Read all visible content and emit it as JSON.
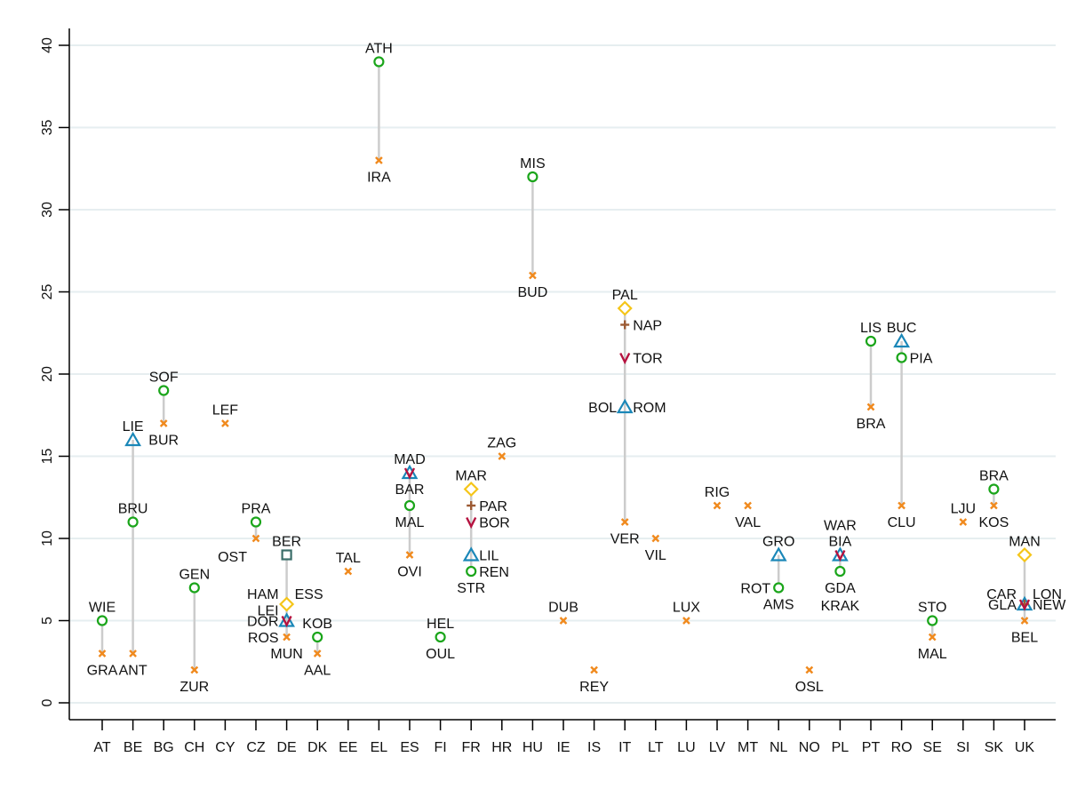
{
  "chart_data": {
    "type": "scatter",
    "title": "",
    "xlabel": "",
    "ylabel": "",
    "ylim": [
      0,
      40
    ],
    "yticks": [
      0,
      5,
      10,
      15,
      20,
      25,
      30,
      35,
      40
    ],
    "grid": true,
    "legend": "none",
    "categories": [
      "AT",
      "BE",
      "BG",
      "CH",
      "CY",
      "CZ",
      "DE",
      "DK",
      "EE",
      "EL",
      "ES",
      "FI",
      "FR",
      "HR",
      "HU",
      "IE",
      "IS",
      "IT",
      "LT",
      "LU",
      "LV",
      "MT",
      "NL",
      "NO",
      "PL",
      "PT",
      "RO",
      "SE",
      "SI",
      "SK",
      "UK"
    ],
    "marker_styles": {
      "circle": {
        "color": "#1aa51a"
      },
      "x": {
        "color": "#f08a1e"
      },
      "triangle": {
        "color": "#1a87b8"
      },
      "diamond": {
        "color": "#f5c518"
      },
      "plus": {
        "color": "#9c5a33"
      },
      "v": {
        "color": "#b5123f"
      },
      "square": {
        "color": "#3b6e6a"
      }
    },
    "range_line_color": "#cccccc",
    "points": [
      {
        "cat": "AT",
        "value": 5,
        "marker": "circle",
        "labels": [
          {
            "text": "WIE",
            "pos": "above"
          }
        ]
      },
      {
        "cat": "AT",
        "value": 3,
        "marker": "x",
        "labels": [
          {
            "text": "GRA",
            "pos": "below"
          }
        ]
      },
      {
        "cat": "BE",
        "value": 16,
        "marker": "triangle",
        "labels": [
          {
            "text": "LIE",
            "pos": "above"
          }
        ]
      },
      {
        "cat": "BE",
        "value": 11,
        "marker": "circle",
        "labels": [
          {
            "text": "BRU",
            "pos": "above"
          }
        ]
      },
      {
        "cat": "BE",
        "value": 3,
        "marker": "x",
        "labels": [
          {
            "text": "ANT",
            "pos": "below"
          }
        ]
      },
      {
        "cat": "BG",
        "value": 19,
        "marker": "circle",
        "labels": [
          {
            "text": "SOF",
            "pos": "above"
          }
        ]
      },
      {
        "cat": "BG",
        "value": 17,
        "marker": "x",
        "labels": [
          {
            "text": "BUR",
            "pos": "below"
          }
        ]
      },
      {
        "cat": "CH",
        "value": 7,
        "marker": "circle",
        "labels": [
          {
            "text": "GEN",
            "pos": "above"
          }
        ]
      },
      {
        "cat": "CH",
        "value": 2,
        "marker": "x",
        "labels": [
          {
            "text": "ZUR",
            "pos": "below"
          }
        ]
      },
      {
        "cat": "CY",
        "value": 17,
        "marker": "x",
        "labels": [
          {
            "text": "LEF",
            "pos": "above"
          }
        ]
      },
      {
        "cat": "CZ",
        "value": 11,
        "marker": "circle",
        "labels": [
          {
            "text": "PRA",
            "pos": "above"
          }
        ]
      },
      {
        "cat": "CZ",
        "value": 10,
        "marker": "x",
        "labels": [
          {
            "text": "OST",
            "pos": "below-left"
          }
        ]
      },
      {
        "cat": "DE",
        "value": 9,
        "marker": "square",
        "labels": [
          {
            "text": "BER",
            "pos": "above"
          }
        ]
      },
      {
        "cat": "DE",
        "value": 6,
        "marker": "diamond",
        "labels": [
          {
            "text": "HAM",
            "pos": "left-up"
          },
          {
            "text": "ESS",
            "pos": "right-up"
          }
        ]
      },
      {
        "cat": "DE",
        "value": 5,
        "marker": "triangle",
        "labels": [
          {
            "text": "LEI",
            "pos": "left-up"
          }
        ]
      },
      {
        "cat": "DE",
        "value": 5,
        "marker": "v",
        "labels": [
          {
            "text": "DOR",
            "pos": "left"
          }
        ]
      },
      {
        "cat": "DE",
        "value": 4,
        "marker": "x",
        "labels": [
          {
            "text": "ROS",
            "pos": "left"
          },
          {
            "text": "MUN",
            "pos": "below"
          }
        ]
      },
      {
        "cat": "DK",
        "value": 4,
        "marker": "circle",
        "labels": [
          {
            "text": "KOB",
            "pos": "above"
          }
        ]
      },
      {
        "cat": "DK",
        "value": 3,
        "marker": "x",
        "labels": [
          {
            "text": "AAL",
            "pos": "below"
          }
        ]
      },
      {
        "cat": "EE",
        "value": 8,
        "marker": "x",
        "labels": [
          {
            "text": "TAL",
            "pos": "above"
          }
        ]
      },
      {
        "cat": "EL",
        "value": 39,
        "marker": "circle",
        "labels": [
          {
            "text": "ATH",
            "pos": "above"
          }
        ]
      },
      {
        "cat": "EL",
        "value": 33,
        "marker": "x",
        "labels": [
          {
            "text": "IRA",
            "pos": "below"
          }
        ]
      },
      {
        "cat": "ES",
        "value": 14,
        "marker": "triangle",
        "labels": [
          {
            "text": "MAD",
            "pos": "above"
          }
        ]
      },
      {
        "cat": "ES",
        "value": 14,
        "marker": "v",
        "labels": [
          {
            "text": "BAR",
            "pos": "below"
          }
        ]
      },
      {
        "cat": "ES",
        "value": 12,
        "marker": "circle",
        "labels": [
          {
            "text": "MAL",
            "pos": "below"
          }
        ]
      },
      {
        "cat": "ES",
        "value": 9,
        "marker": "x",
        "labels": [
          {
            "text": "OVI",
            "pos": "below"
          }
        ]
      },
      {
        "cat": "FI",
        "value": 4,
        "marker": "circle",
        "labels": [
          {
            "text": "HEL",
            "pos": "above"
          },
          {
            "text": "OUL",
            "pos": "below"
          }
        ]
      },
      {
        "cat": "FR",
        "value": 13,
        "marker": "diamond",
        "labels": [
          {
            "text": "MAR",
            "pos": "above"
          }
        ]
      },
      {
        "cat": "FR",
        "value": 12,
        "marker": "plus",
        "labels": [
          {
            "text": "PAR",
            "pos": "right"
          }
        ]
      },
      {
        "cat": "FR",
        "value": 11,
        "marker": "v",
        "labels": [
          {
            "text": "BOR",
            "pos": "right"
          }
        ]
      },
      {
        "cat": "FR",
        "value": 9,
        "marker": "triangle",
        "labels": [
          {
            "text": "LIL",
            "pos": "right"
          }
        ]
      },
      {
        "cat": "FR",
        "value": 8,
        "marker": "circle",
        "labels": [
          {
            "text": "REN",
            "pos": "right"
          },
          {
            "text": "STR",
            "pos": "below"
          }
        ]
      },
      {
        "cat": "HR",
        "value": 15,
        "marker": "x",
        "labels": [
          {
            "text": "ZAG",
            "pos": "above"
          }
        ]
      },
      {
        "cat": "HU",
        "value": 32,
        "marker": "circle",
        "labels": [
          {
            "text": "MIS",
            "pos": "above"
          }
        ]
      },
      {
        "cat": "HU",
        "value": 26,
        "marker": "x",
        "labels": [
          {
            "text": "BUD",
            "pos": "below"
          }
        ]
      },
      {
        "cat": "IE",
        "value": 5,
        "marker": "x",
        "labels": [
          {
            "text": "DUB",
            "pos": "above"
          }
        ]
      },
      {
        "cat": "IS",
        "value": 2,
        "marker": "x",
        "labels": [
          {
            "text": "REY",
            "pos": "below"
          }
        ]
      },
      {
        "cat": "IT",
        "value": 24,
        "marker": "diamond",
        "labels": [
          {
            "text": "PAL",
            "pos": "above"
          }
        ]
      },
      {
        "cat": "IT",
        "value": 23,
        "marker": "plus",
        "labels": [
          {
            "text": "NAP",
            "pos": "right"
          }
        ]
      },
      {
        "cat": "IT",
        "value": 21,
        "marker": "v",
        "labels": [
          {
            "text": "TOR",
            "pos": "right"
          }
        ]
      },
      {
        "cat": "IT",
        "value": 18,
        "marker": "triangle",
        "labels": [
          {
            "text": "BOL",
            "pos": "left"
          },
          {
            "text": "ROM",
            "pos": "right"
          }
        ]
      },
      {
        "cat": "IT",
        "value": 11,
        "marker": "x",
        "labels": [
          {
            "text": "VER",
            "pos": "below"
          }
        ]
      },
      {
        "cat": "LT",
        "value": 10,
        "marker": "x",
        "labels": [
          {
            "text": "VIL",
            "pos": "below"
          }
        ]
      },
      {
        "cat": "LU",
        "value": 5,
        "marker": "x",
        "labels": [
          {
            "text": "LUX",
            "pos": "above"
          }
        ]
      },
      {
        "cat": "LV",
        "value": 12,
        "marker": "x",
        "labels": [
          {
            "text": "RIG",
            "pos": "above"
          }
        ]
      },
      {
        "cat": "MT",
        "value": 12,
        "marker": "x",
        "labels": [
          {
            "text": "VAL",
            "pos": "below"
          }
        ]
      },
      {
        "cat": "NL",
        "value": 9,
        "marker": "triangle",
        "labels": [
          {
            "text": "GRO",
            "pos": "above"
          }
        ]
      },
      {
        "cat": "NL",
        "value": 7,
        "marker": "circle",
        "labels": [
          {
            "text": "ROT",
            "pos": "left"
          },
          {
            "text": "AMS",
            "pos": "below"
          }
        ]
      },
      {
        "cat": "NO",
        "value": 2,
        "marker": "x",
        "labels": [
          {
            "text": "OSL",
            "pos": "below"
          }
        ]
      },
      {
        "cat": "PL",
        "value": 9,
        "marker": "triangle",
        "labels": [
          {
            "text": "WAR",
            "pos": "above2"
          }
        ]
      },
      {
        "cat": "PL",
        "value": 9,
        "marker": "v",
        "labels": [
          {
            "text": "BIA",
            "pos": "above"
          }
        ]
      },
      {
        "cat": "PL",
        "value": 8,
        "marker": "circle",
        "labels": [
          {
            "text": "GDA",
            "pos": "below"
          },
          {
            "text": "KRAK",
            "pos": "below2"
          }
        ]
      },
      {
        "cat": "PT",
        "value": 22,
        "marker": "circle",
        "labels": [
          {
            "text": "LIS",
            "pos": "above"
          }
        ]
      },
      {
        "cat": "PT",
        "value": 18,
        "marker": "x",
        "labels": [
          {
            "text": "BRA",
            "pos": "below"
          }
        ]
      },
      {
        "cat": "RO",
        "value": 22,
        "marker": "triangle",
        "labels": [
          {
            "text": "BUC",
            "pos": "above"
          }
        ]
      },
      {
        "cat": "RO",
        "value": 21,
        "marker": "circle",
        "labels": [
          {
            "text": "PIA",
            "pos": "right"
          }
        ]
      },
      {
        "cat": "RO",
        "value": 12,
        "marker": "x",
        "labels": [
          {
            "text": "CLU",
            "pos": "below"
          }
        ]
      },
      {
        "cat": "SE",
        "value": 5,
        "marker": "circle",
        "labels": [
          {
            "text": "STO",
            "pos": "above"
          }
        ]
      },
      {
        "cat": "SE",
        "value": 4,
        "marker": "x",
        "labels": [
          {
            "text": "MAL",
            "pos": "below"
          }
        ]
      },
      {
        "cat": "SI",
        "value": 11,
        "marker": "x",
        "labels": [
          {
            "text": "LJU",
            "pos": "above"
          }
        ]
      },
      {
        "cat": "SK",
        "value": 13,
        "marker": "circle",
        "labels": [
          {
            "text": "BRA",
            "pos": "above"
          }
        ]
      },
      {
        "cat": "SK",
        "value": 12,
        "marker": "x",
        "labels": [
          {
            "text": "KOS",
            "pos": "below"
          }
        ]
      },
      {
        "cat": "UK",
        "value": 9,
        "marker": "diamond",
        "labels": [
          {
            "text": "MAN",
            "pos": "above"
          }
        ]
      },
      {
        "cat": "UK",
        "value": 6,
        "marker": "triangle",
        "labels": [
          {
            "text": "CAR",
            "pos": "left-up"
          },
          {
            "text": "LON",
            "pos": "right-up"
          }
        ]
      },
      {
        "cat": "UK",
        "value": 6,
        "marker": "v",
        "labels": [
          {
            "text": "GLA",
            "pos": "left"
          }
        ]
      },
      {
        "cat": "UK",
        "value": 6,
        "marker": "plus",
        "labels": [
          {
            "text": "NEW",
            "pos": "right"
          }
        ]
      },
      {
        "cat": "UK",
        "value": 5,
        "marker": "x",
        "labels": [
          {
            "text": "BEL",
            "pos": "below"
          }
        ]
      }
    ]
  }
}
